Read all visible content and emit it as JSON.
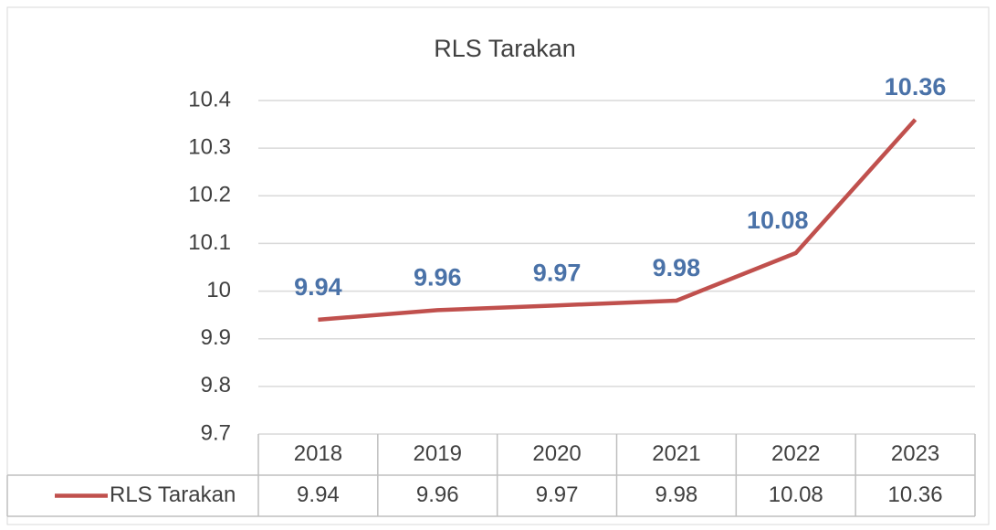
{
  "chart_data": {
    "type": "line",
    "title": "RLS Tarakan",
    "categories": [
      "2018",
      "2019",
      "2020",
      "2021",
      "2022",
      "2023"
    ],
    "series": [
      {
        "name": "RLS Tarakan",
        "color": "#c0504d",
        "values": [
          9.94,
          9.96,
          9.97,
          9.98,
          10.08,
          10.36
        ]
      }
    ],
    "ylim": [
      9.7,
      10.4
    ],
    "yticks": [
      9.7,
      9.8,
      9.9,
      10,
      10.1,
      10.2,
      10.3,
      10.4
    ],
    "grid": true,
    "data_labels_color": "#4a72a8",
    "data_table": true
  }
}
